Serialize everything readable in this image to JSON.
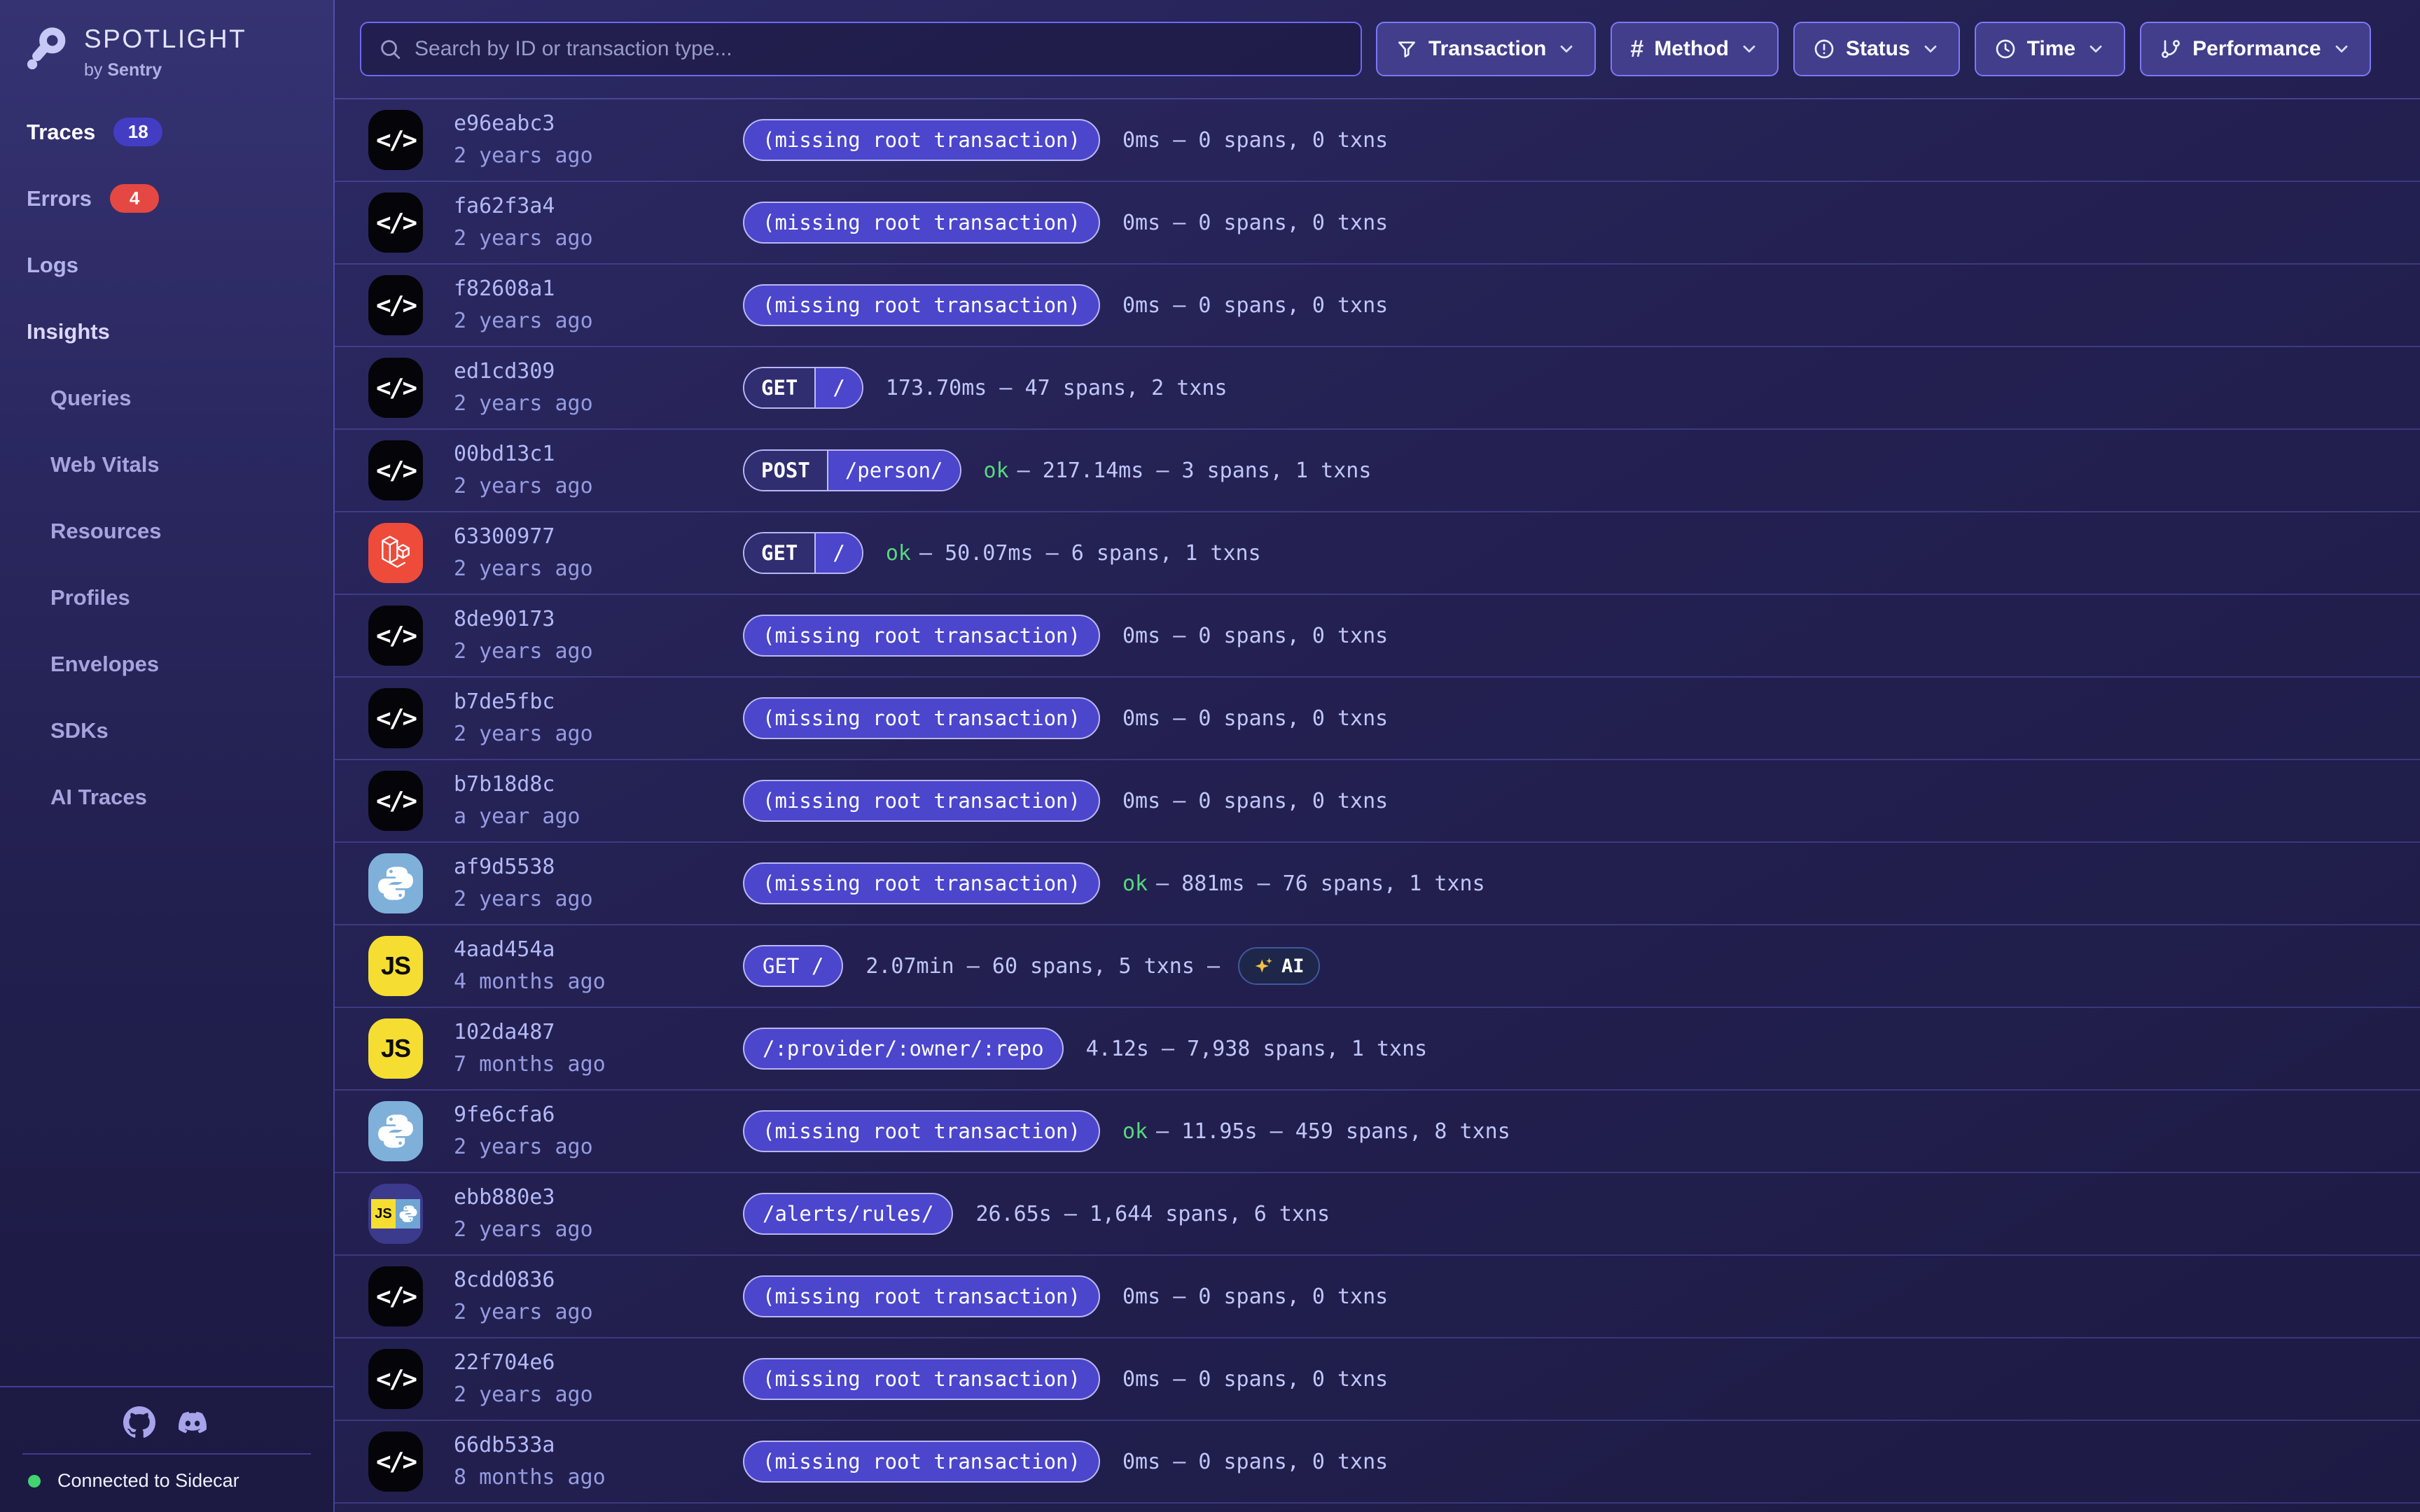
{
  "app": {
    "name": "SPOTLIGHT",
    "byline_prefix": "by ",
    "byline_brand": "Sentry"
  },
  "colors": {
    "accent_indigo": "#4b46cc",
    "badge_indigo": "#433dc4",
    "badge_red": "#e54842",
    "ok_green": "#57d97c",
    "status_green": "#42d46f",
    "laravel_red": "#ee4b3a",
    "python_blue": "#7eb0da",
    "js_yellow": "#f5de31"
  },
  "sidebar": {
    "items": [
      {
        "label": "Traces",
        "badge": "18",
        "badge_color": "#433dc4",
        "variant": "active"
      },
      {
        "label": "Errors",
        "badge": "4",
        "badge_color": "#e54842",
        "variant": "default"
      },
      {
        "label": "Logs",
        "variant": "default"
      },
      {
        "label": "Insights",
        "variant": "section"
      },
      {
        "label": "Queries",
        "variant": "sub"
      },
      {
        "label": "Web Vitals",
        "variant": "sub"
      },
      {
        "label": "Resources",
        "variant": "sub"
      },
      {
        "label": "Profiles",
        "variant": "sub"
      },
      {
        "label": "Envelopes",
        "variant": "sub"
      },
      {
        "label": "SDKs",
        "variant": "sub"
      },
      {
        "label": "AI Traces",
        "variant": "sub"
      }
    ],
    "footer": {
      "icons": [
        {
          "name": "github-icon"
        },
        {
          "name": "discord-icon"
        }
      ],
      "status": "Connected to Sidecar"
    }
  },
  "toolbar": {
    "search": {
      "placeholder": "Search by ID or transaction type..."
    },
    "filters": [
      {
        "label": "Transaction",
        "icon": "funnel-icon"
      },
      {
        "label": "Method",
        "icon": "hash-icon"
      },
      {
        "label": "Status",
        "icon": "alert-circle-icon"
      },
      {
        "label": "Time",
        "icon": "clock-icon"
      },
      {
        "label": "Performance",
        "icon": "git-branch-icon"
      }
    ]
  },
  "traces": {
    "rows": [
      {
        "id": "e96eabc3",
        "age": "2 years ago",
        "icon": "code",
        "badge": {
          "type": "missing",
          "label": "(missing root transaction)"
        },
        "status": null,
        "metrics": "0ms — 0 spans, 0 txns"
      },
      {
        "id": "fa62f3a4",
        "age": "2 years ago",
        "icon": "code",
        "badge": {
          "type": "missing",
          "label": "(missing root transaction)"
        },
        "status": null,
        "metrics": "0ms — 0 spans, 0 txns"
      },
      {
        "id": "f82608a1",
        "age": "2 years ago",
        "icon": "code",
        "badge": {
          "type": "missing",
          "label": "(missing root transaction)"
        },
        "status": null,
        "metrics": "0ms — 0 spans, 0 txns"
      },
      {
        "id": "ed1cd309",
        "age": "2 years ago",
        "icon": "code",
        "badge": {
          "type": "split",
          "method": "GET",
          "path": "/"
        },
        "status": null,
        "metrics": "173.70ms — 47 spans, 2 txns"
      },
      {
        "id": "00bd13c1",
        "age": "2 years ago",
        "icon": "code",
        "badge": {
          "type": "split",
          "method": "POST",
          "path": "/person/"
        },
        "status": "ok",
        "metrics": "— 217.14ms — 3 spans, 1 txns"
      },
      {
        "id": "63300977",
        "age": "2 years ago",
        "icon": "laravel",
        "badge": {
          "type": "split",
          "method": "GET",
          "path": "/"
        },
        "status": "ok",
        "metrics": "— 50.07ms — 6 spans, 1 txns"
      },
      {
        "id": "8de90173",
        "age": "2 years ago",
        "icon": "code",
        "badge": {
          "type": "missing",
          "label": "(missing root transaction)"
        },
        "status": null,
        "metrics": "0ms — 0 spans, 0 txns"
      },
      {
        "id": "b7de5fbc",
        "age": "2 years ago",
        "icon": "code",
        "badge": {
          "type": "missing",
          "label": "(missing root transaction)"
        },
        "status": null,
        "metrics": "0ms — 0 spans, 0 txns"
      },
      {
        "id": "b7b18d8c",
        "age": "a year ago",
        "icon": "code",
        "badge": {
          "type": "missing",
          "label": "(missing root transaction)"
        },
        "status": null,
        "metrics": "0ms — 0 spans, 0 txns"
      },
      {
        "id": "af9d5538",
        "age": "2 years ago",
        "icon": "python",
        "badge": {
          "type": "missing",
          "label": "(missing root transaction)"
        },
        "status": "ok",
        "metrics": "— 881ms — 76 spans, 1 txns"
      },
      {
        "id": "4aad454a",
        "age": "4 months ago",
        "icon": "js",
        "badge": {
          "type": "plain",
          "label": "GET /"
        },
        "status": null,
        "metrics": "2.07min — 60 spans, 5 txns —",
        "ai": {
          "icon": "sparkles-icon",
          "label": "AI"
        }
      },
      {
        "id": "102da487",
        "age": "7 months ago",
        "icon": "js",
        "badge": {
          "type": "plain",
          "label": "/:provider/:owner/:repo"
        },
        "status": null,
        "metrics": "4.12s — 7,938 spans, 1 txns"
      },
      {
        "id": "9fe6cfa6",
        "age": "2 years ago",
        "icon": "python",
        "badge": {
          "type": "missing",
          "label": "(missing root transaction)"
        },
        "status": "ok",
        "metrics": "— 11.95s — 459 spans, 8 txns"
      },
      {
        "id": "ebb880e3",
        "age": "2 years ago",
        "icon": "js-python",
        "badge": {
          "type": "plain",
          "label": "/alerts/rules/"
        },
        "status": null,
        "metrics": "26.65s — 1,644 spans, 6 txns"
      },
      {
        "id": "8cdd0836",
        "age": "2 years ago",
        "icon": "code",
        "badge": {
          "type": "missing",
          "label": "(missing root transaction)"
        },
        "status": null,
        "metrics": "0ms — 0 spans, 0 txns"
      },
      {
        "id": "22f704e6",
        "age": "2 years ago",
        "icon": "code",
        "badge": {
          "type": "missing",
          "label": "(missing root transaction)"
        },
        "status": null,
        "metrics": "0ms — 0 spans, 0 txns"
      },
      {
        "id": "66db533a",
        "age": "8 months ago",
        "icon": "code",
        "badge": {
          "type": "missing",
          "label": "(missing root transaction)"
        },
        "status": null,
        "metrics": "0ms — 0 spans, 0 txns"
      }
    ]
  }
}
